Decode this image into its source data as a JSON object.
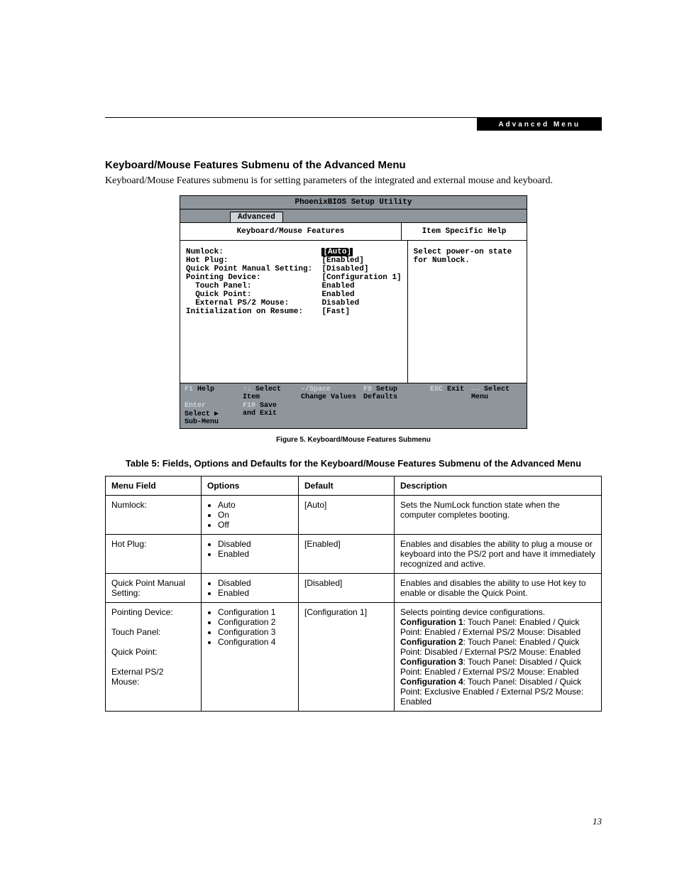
{
  "header": {
    "section": "Advanced Menu"
  },
  "heading": "Keyboard/Mouse Features Submenu of the Advanced Menu",
  "intro": "Keyboard/Mouse Features submenu is for setting parameters of the integrated and external mouse and keyboard.",
  "bios": {
    "title": "PhoenixBIOS Setup Utility",
    "tab": "Advanced",
    "left_header": "Keyboard/Mouse Features",
    "right_header": "Item Specific Help",
    "help_text": "Select power-on state for Numlock.",
    "rows": [
      {
        "label": "Numlock:                     ",
        "value": "[Auto]"
      },
      {
        "label": "Hot Plug:                    ",
        "value": "[Enabled]"
      },
      {
        "label": "Quick Point Manual Setting:  ",
        "value": "[Disabled]"
      },
      {
        "label": "Pointing Device:             ",
        "value": "[Configuration 1]"
      },
      {
        "label": "  Touch Panel:               ",
        "value": "Enabled"
      },
      {
        "label": "  Quick Point:               ",
        "value": "Enabled"
      },
      {
        "label": "  External PS/2 Mouse:       ",
        "value": "Disabled"
      },
      {
        "label": "Initialization on Resume:    ",
        "value": "[Fast]"
      }
    ],
    "footer": [
      {
        "k": "F1",
        "l": "Help"
      },
      {
        "k": "↑↓",
        "l": "Select Item"
      },
      {
        "k": "-/Space",
        "l": "Change Values"
      },
      {
        "k": "F9",
        "l": "Setup Defaults"
      },
      {
        "k": "ESC",
        "l": "Exit"
      },
      {
        "k": "←→",
        "l": "Select Menu"
      },
      {
        "k": "Enter",
        "l": "Select ▶ Sub-Menu"
      },
      {
        "k": "F10",
        "l": "Save and Exit"
      }
    ]
  },
  "figure_caption": "Figure 5.  Keyboard/Mouse Features Submenu",
  "table_caption": "Table 5: Fields, Options and Defaults for the Keyboard/Mouse Features Submenu of the Advanced Menu",
  "table": {
    "columns": [
      "Menu Field",
      "Options",
      "Default",
      "Description"
    ],
    "col_widths": [
      "118px",
      "120px",
      "118px",
      "auto"
    ],
    "rows": [
      {
        "field": "Numlock:",
        "options": [
          "Auto",
          "On",
          "Off"
        ],
        "default": "[Auto]",
        "description": "Sets the NumLock function state when the computer completes booting."
      },
      {
        "field": "Hot Plug:",
        "options": [
          "Disabled",
          "Enabled"
        ],
        "default": "[Enabled]",
        "description": "Enables and disables the ability to plug a mouse or keyboard into the PS/2 port and have it immediately recognized and active."
      },
      {
        "field": "Quick Point Manual Setting:",
        "options": [
          "Disabled",
          "Enabled"
        ],
        "default": "[Disabled]",
        "description": "Enables and disables the ability to use Hot key to enable or disable the Quick Point."
      },
      {
        "field": "Pointing Device:\n\n   Touch Panel:\n\n   Quick Point:\n\n   External PS/2\n   Mouse:",
        "options": [
          "Configuration 1",
          "Configuration 2",
          "Configuration 3",
          "Configuration 4"
        ],
        "default": "[Configuration 1]",
        "description_html": "Selects pointing device configurations.<br><b>Configuration 1</b>:  Touch Panel: Enabled / Quick Point: Enabled / External PS/2 Mouse: Disabled<br><b>Configuration 2</b>: Touch Panel: Enabled / Quick Point: Disabled / External PS/2 Mouse: Enabled<br><b>Configuration 3</b>: Touch Panel: Disabled / Quick Point: Enabled / External PS/2 Mouse: Enabled<br><b>Configuration 4</b>: Touch Panel: Disabled / Quick Point: Exclusive Enabled / External PS/2 Mouse: Enabled"
      }
    ]
  },
  "page_number": "13",
  "style": {
    "bios_bg": "#8e969c",
    "bios_tab_bg": "#d0d3d5",
    "highlight_bg": "#000000",
    "highlight_fg": "#ffffff",
    "footer_key_color": "#cfd4d8",
    "bios_font": "Courier New",
    "body_font": "Times New Roman",
    "ui_font": "Arial"
  }
}
